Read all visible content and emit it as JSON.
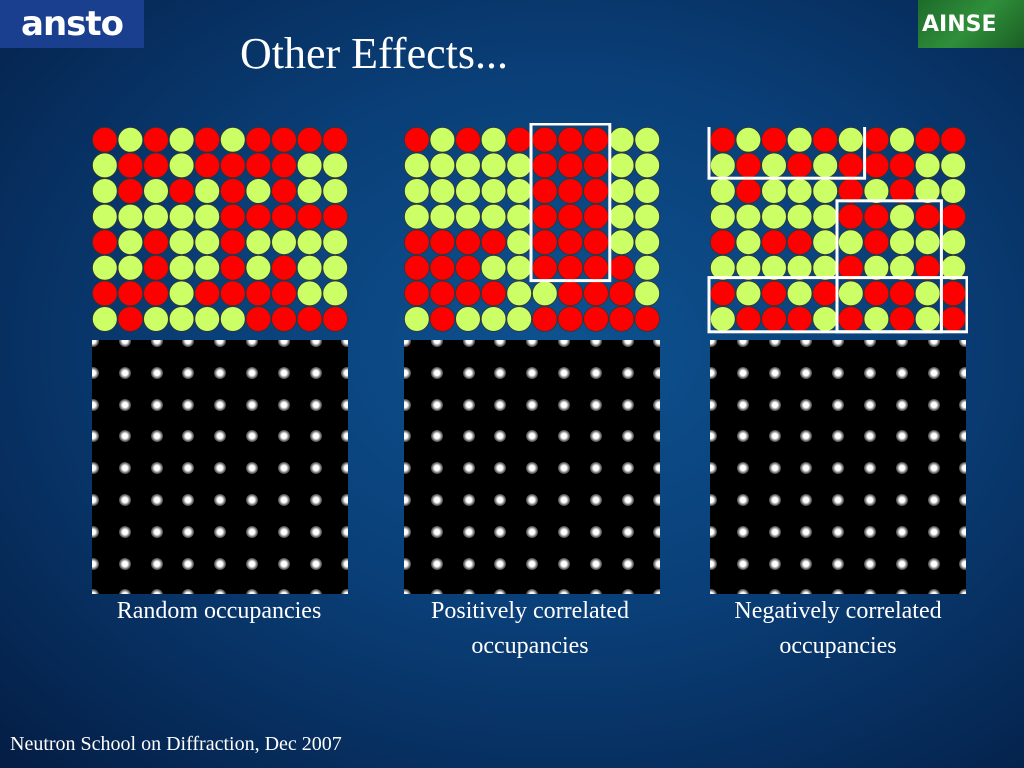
{
  "title": "Other Effects...",
  "logos": {
    "left": "ansto",
    "right": "AINSE"
  },
  "colors": {
    "red": "#ff0000",
    "green": "#ccff66",
    "frame": "#ffffff"
  },
  "panels": [
    {
      "caption": "Random occupancies",
      "grid": [
        "RGRGRGRRRR",
        "GRRGRRRRGG",
        "GRGRGRGRGG",
        "GGGGGRRRRR",
        "RGRGGRGGGG",
        "GGRGGRGRGG",
        "RRRGRRRRGG",
        "GRGGGGRRRR"
      ],
      "frames": []
    },
    {
      "caption": "Positively correlated occupancies",
      "grid": [
        "RGRGRRRRGG",
        "GGGGGRRRGG",
        "GGGGGRRRGG",
        "GGGGGRRRGG",
        "RRRRGRRRGG",
        "RRRGGRRRRG",
        "RRRRGGRRRG",
        "GRGGGRRRRR"
      ],
      "frames": [
        {
          "row": 0,
          "col": 5,
          "rows": 6,
          "cols": 3
        }
      ]
    },
    {
      "caption": "Negatively correlated occupancies",
      "grid": [
        "RGRGRGRGRR",
        "GRGRGRRRGG",
        "GRGGGRGRGG",
        "GGGGGRRGRR",
        "RGRRGGRGGG",
        "GGGGGRGGRG",
        "RGRGRGRRGR",
        "GRRRGRGRGR"
      ],
      "frames": [
        {
          "row": 0,
          "col": 0,
          "rows": 2,
          "cols": 6
        },
        {
          "row": 3,
          "col": 5,
          "rows": 5,
          "cols": 4
        },
        {
          "row": 6,
          "col": 0,
          "rows": 2,
          "cols": 10
        }
      ]
    }
  ],
  "footer": "Neutron School on Diffraction, Dec 2007"
}
